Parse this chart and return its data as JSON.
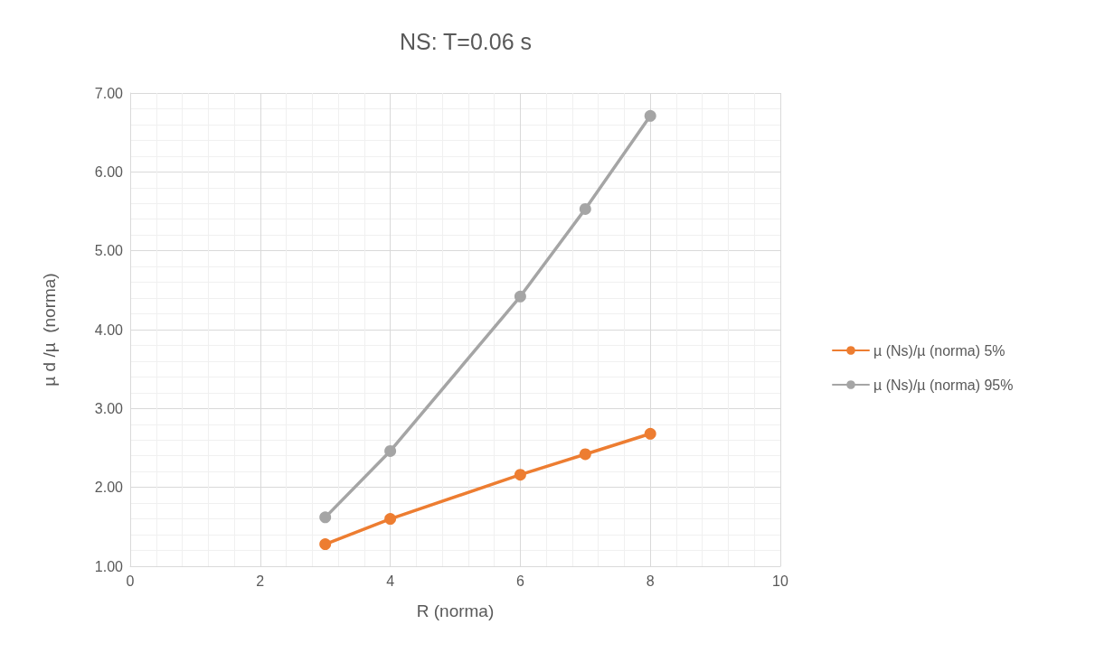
{
  "chart_data": {
    "type": "line",
    "title": "NS: T=0.06 s",
    "xlabel": "R (norma)",
    "ylabel": "µ d /µ  (norma)",
    "xlim": [
      0,
      10
    ],
    "xticks": [
      0,
      2,
      4,
      6,
      8,
      10
    ],
    "ylim": [
      1,
      7
    ],
    "yticks": [
      {
        "value": 1,
        "label": "1.00"
      },
      {
        "value": 2,
        "label": "2.00"
      },
      {
        "value": 3,
        "label": "3.00"
      },
      {
        "value": 4,
        "label": "4.00"
      },
      {
        "value": 5,
        "label": "5.00"
      },
      {
        "value": 6,
        "label": "6.00"
      },
      {
        "value": 7,
        "label": "7.00"
      }
    ],
    "x": [
      3,
      4,
      6,
      7,
      8
    ],
    "series": [
      {
        "name": "µ (Ns)/µ (norma) 5%",
        "color": "#ed7d31",
        "values": [
          1.28,
          1.6,
          2.16,
          2.42,
          2.68
        ]
      },
      {
        "name": "µ (Ns)/µ (norma) 95%",
        "color": "#a5a5a5",
        "values": [
          1.62,
          2.46,
          4.42,
          5.53,
          6.71
        ]
      }
    ],
    "grid": true,
    "legend": "right",
    "marker": "circle",
    "line_style": "solid"
  }
}
